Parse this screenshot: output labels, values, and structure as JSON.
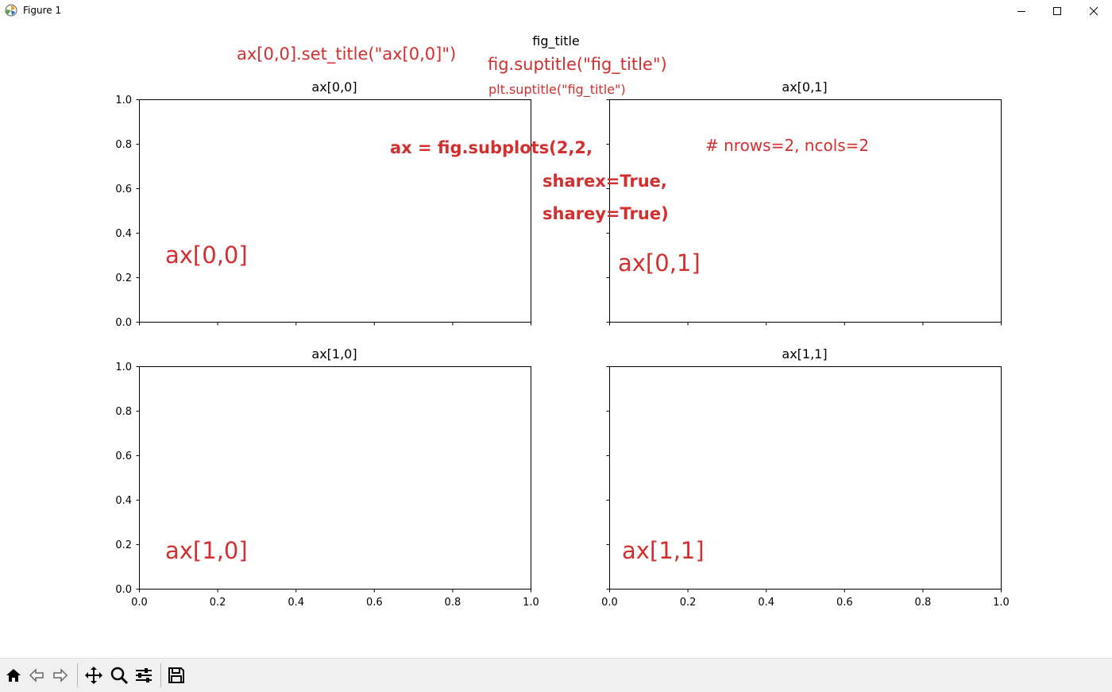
{
  "window": {
    "title": "Figure 1"
  },
  "figure": {
    "suptitle": "fig_title",
    "axes": [
      {
        "id": "ax00",
        "title": "ax[0,0]",
        "label": "ax[0,0]"
      },
      {
        "id": "ax01",
        "title": "ax[0,1]",
        "label": "ax[0,1]"
      },
      {
        "id": "ax10",
        "title": "ax[1,0]",
        "label": "ax[1,0]"
      },
      {
        "id": "ax11",
        "title": "ax[1,1]",
        "label": "ax[1,1]"
      }
    ],
    "ticks": [
      "0.0",
      "0.2",
      "0.4",
      "0.6",
      "0.8",
      "1.0"
    ]
  },
  "annotations": {
    "set_title": "ax[0,0].set_title(\"ax[0,0]\")",
    "fig_suptitle": "fig.suptitle(\"fig_title\")",
    "plt_suptitle": "plt.suptitle(\"fig_title\")",
    "subplots_line1": "ax = fig.subplots(2,2,",
    "subplots_line2": "sharex=True,",
    "subplots_line3": "sharey=True)",
    "nrows_comment": "# nrows=2, ncols=2"
  },
  "chart_data": {
    "type": "scatter",
    "nrows": 2,
    "ncols": 2,
    "sharex": true,
    "sharey": true,
    "xlim": [
      0.0,
      1.0
    ],
    "ylim": [
      0.0,
      1.0
    ],
    "series": [],
    "grid": false
  },
  "toolbar": {
    "buttons": [
      "home-icon",
      "back-icon",
      "forward-icon",
      "pan-icon",
      "zoom-icon",
      "configure-subplots-icon",
      "save-icon"
    ]
  },
  "colors": {
    "annotation": "#d32f2f",
    "axis": "#000000",
    "toolbar_bg": "#f0f0f0"
  }
}
